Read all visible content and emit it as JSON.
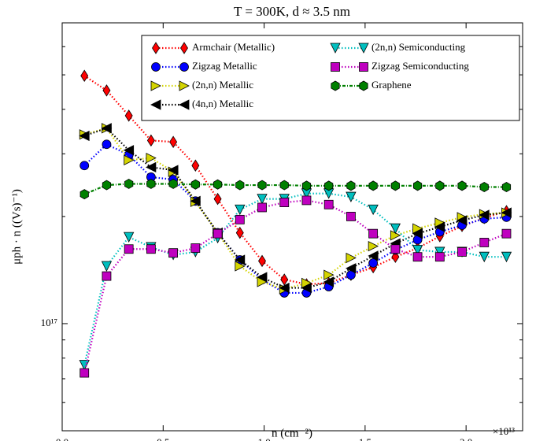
{
  "chart_data": {
    "type": "line",
    "title": "T = 300K, d ≈ 3.5 nm",
    "xlabel": "n (cm⁻²)",
    "ylabel": "μph · n ((Vs)⁻¹)",
    "x_multiplier": "×10¹³",
    "log_y": true,
    "xlim": [
      0,
      2.28
    ],
    "ylim": [
      5e+16,
      7e+17
    ],
    "xticks": [
      {
        "value": 0,
        "label": "0.0"
      },
      {
        "value": 0.5,
        "label": "0.5"
      },
      {
        "value": 1,
        "label": "1.0"
      },
      {
        "value": 1.5,
        "label": "1.5"
      },
      {
        "value": 2,
        "label": "2.0"
      }
    ],
    "yticks": [
      {
        "value": 1e+17,
        "label": "10¹⁷"
      }
    ],
    "yminorticks": [
      6e+16,
      7e+16,
      8e+16,
      9e+16,
      2e+17,
      3e+17,
      4e+17,
      5e+17,
      6e+17
    ],
    "legend_position": "upper right",
    "x": [
      0.11,
      0.22,
      0.33,
      0.44,
      0.55,
      0.66,
      0.77,
      0.88,
      0.99,
      1.1,
      1.21,
      1.32,
      1.43,
      1.54,
      1.65,
      1.76,
      1.87,
      1.98,
      2.09,
      2.2
    ],
    "series": [
      {
        "name": "Armchair (Metallic)",
        "color": "#ff0000",
        "marker": "diamond",
        "values": [
          4.97e+17,
          4.52e+17,
          3.84e+17,
          3.27e+17,
          3.24e+17,
          2.78e+17,
          2.24e+17,
          1.8e+17,
          1.5e+17,
          1.33e+17,
          1.29e+17,
          1.3e+17,
          1.37e+17,
          1.44e+17,
          1.54e+17,
          1.63e+17,
          1.76e+17,
          1.88e+17,
          1.98e+17,
          2.07e+17
        ]
      },
      {
        "name": "Zigzag Metallic",
        "color": "#0000ff",
        "marker": "circle",
        "values": [
          2.78e+17,
          3.19e+17,
          2.98e+17,
          2.58e+17,
          2.54e+17,
          2.21e+17,
          1.8e+17,
          1.51e+17,
          1.33e+17,
          1.22e+17,
          1.22e+17,
          1.27e+17,
          1.37e+17,
          1.48e+17,
          1.61e+17,
          1.72e+17,
          1.81e+17,
          1.89e+17,
          1.97e+17,
          1.99e+17
        ]
      },
      {
        "name": "(2n,n) Metallic",
        "color": "#d4d400",
        "marker": "triangle-right",
        "values": [
          3.4e+17,
          3.54e+17,
          2.88e+17,
          2.92e+17,
          2.67e+17,
          2.2e+17,
          1.8e+17,
          1.45e+17,
          1.31e+17,
          1.25e+17,
          1.3e+17,
          1.37e+17,
          1.53e+17,
          1.65e+17,
          1.77e+17,
          1.85e+17,
          1.92e+17,
          1.99e+17,
          2.03e+17,
          2.05e+17
        ]
      },
      {
        "name": "(4n,n) Metallic",
        "color": "#000000",
        "marker": "triangle-left",
        "values": [
          3.37e+17,
          3.54e+17,
          3.07e+17,
          2.75e+17,
          2.7e+17,
          2.21e+17,
          1.8e+17,
          1.51e+17,
          1.35e+17,
          1.26e+17,
          1.26e+17,
          1.31e+17,
          1.43e+17,
          1.55e+17,
          1.68e+17,
          1.79e+17,
          1.87e+17,
          1.95e+17,
          2.02e+17,
          2.05e+17
        ]
      },
      {
        "name": "(2n,n) Semiconducting",
        "color": "#00bfbf",
        "marker": "triangle-down",
        "values": [
          7.65e+16,
          1.45e+17,
          1.75e+17,
          1.64e+17,
          1.56e+17,
          1.59e+17,
          1.74e+17,
          2.09e+17,
          2.24e+17,
          2.24e+17,
          2.32e+17,
          2.32e+17,
          2.27e+17,
          2.09e+17,
          1.85e+17,
          1.61e+17,
          1.59e+17,
          1.59e+17,
          1.54e+17,
          1.54e+17
        ]
      },
      {
        "name": "Zigzag Semiconducting",
        "color": "#bf00bf",
        "marker": "square",
        "values": [
          7.27e+16,
          1.36e+17,
          1.62e+17,
          1.62e+17,
          1.58e+17,
          1.63e+17,
          1.79e+17,
          1.96e+17,
          2.12e+17,
          2.19e+17,
          2.22e+17,
          2.16e+17,
          2e+17,
          1.79e+17,
          1.62e+17,
          1.54e+17,
          1.54e+17,
          1.59e+17,
          1.69e+17,
          1.79e+17
        ]
      },
      {
        "name": "Graphene",
        "color": "#008000",
        "marker": "hexagon",
        "values": [
          2.31e+17,
          2.45e+17,
          2.47e+17,
          2.47e+17,
          2.47e+17,
          2.46e+17,
          2.46e+17,
          2.45e+17,
          2.45e+17,
          2.45e+17,
          2.44e+17,
          2.44e+17,
          2.44e+17,
          2.44e+17,
          2.44e+17,
          2.44e+17,
          2.44e+17,
          2.44e+17,
          2.42e+17,
          2.42e+17
        ]
      }
    ]
  }
}
